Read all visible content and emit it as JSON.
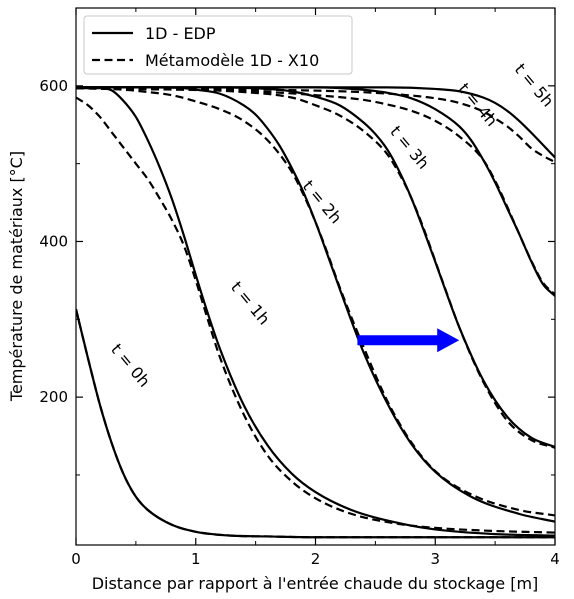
{
  "chart_data": {
    "type": "line",
    "xlabel": "Distance par rapport à l'entrée chaude du stockage [m]",
    "ylabel": "Température de matériaux [°C]",
    "xlim": [
      0,
      4
    ],
    "ylim": [
      10,
      700
    ],
    "x_ticks": [
      0,
      1,
      2,
      3,
      4
    ],
    "x_tick_labels": [
      "0",
      "1",
      "2",
      "3",
      "4"
    ],
    "y_ticks": [
      200,
      400,
      600
    ],
    "y_tick_labels": [
      "200",
      "400",
      "600"
    ],
    "grid": false,
    "legend_position": "top-left",
    "legend": [
      {
        "label": "1D - EDP",
        "style": "solid"
      },
      {
        "label": "Métamodèle 1D - X10",
        "style": "dashed"
      }
    ],
    "annotations": [
      {
        "text": "t = 0h",
        "x": 0.45,
        "y": 240,
        "rotation": 50
      },
      {
        "text": "t = 1h",
        "x": 1.45,
        "y": 320,
        "rotation": 50
      },
      {
        "text": "t = 2h",
        "x": 2.05,
        "y": 450,
        "rotation": 50
      },
      {
        "text": "t = 3h",
        "x": 2.78,
        "y": 520,
        "rotation": 50
      },
      {
        "text": "t = 4h",
        "x": 3.35,
        "y": 575,
        "rotation": 50
      },
      {
        "text": "t = 5h",
        "x": 3.82,
        "y": 600,
        "rotation": 50
      }
    ],
    "arrow": {
      "from": [
        2.35,
        273
      ],
      "to": [
        3.2,
        273
      ],
      "color": "#0000ff"
    },
    "series": [
      {
        "style": "solid",
        "x": [
          0,
          0.1,
          0.2,
          0.3,
          0.4,
          0.5,
          0.6,
          0.8,
          1.0,
          1.3,
          1.6,
          2.0,
          3.0,
          4.0
        ],
        "y": [
          313,
          250,
          190,
          140,
          100,
          72,
          55,
          36,
          27,
          22,
          21,
          20,
          20,
          20
        ]
      },
      {
        "style": "dashed",
        "x": [
          0,
          0.1,
          0.2,
          0.3,
          0.4,
          0.5,
          0.6,
          0.8,
          1.0,
          1.3,
          1.6,
          2.0,
          3.0,
          4.0
        ],
        "y": [
          313,
          250,
          190,
          140,
          100,
          72,
          55,
          36,
          27,
          22,
          21,
          20,
          20,
          20
        ]
      },
      {
        "style": "solid",
        "x": [
          0,
          0.2,
          0.3,
          0.4,
          0.5,
          0.6,
          0.7,
          0.8,
          0.9,
          1.0,
          1.1,
          1.2,
          1.4,
          1.6,
          1.8,
          2.0,
          2.3,
          2.7,
          3.0,
          3.5,
          4.0
        ],
        "y": [
          597,
          597,
          594,
          580,
          560,
          530,
          495,
          455,
          408,
          357,
          308,
          263,
          190,
          138,
          102,
          78,
          55,
          38,
          30,
          24,
          22
        ]
      },
      {
        "style": "dashed",
        "x": [
          0,
          0.1,
          0.2,
          0.3,
          0.4,
          0.5,
          0.6,
          0.7,
          0.8,
          0.9,
          1.0,
          1.1,
          1.2,
          1.4,
          1.6,
          1.8,
          2.0,
          2.3,
          2.7,
          3.0,
          3.5,
          4.0
        ],
        "y": [
          585,
          575,
          560,
          540,
          520,
          500,
          480,
          455,
          428,
          395,
          350,
          300,
          252,
          178,
          125,
          92,
          70,
          50,
          37,
          32,
          28,
          26
        ]
      },
      {
        "style": "solid",
        "x": [
          0,
          0.6,
          0.9,
          1.0,
          1.2,
          1.4,
          1.5,
          1.6,
          1.7,
          1.8,
          1.9,
          2.0,
          2.1,
          2.2,
          2.4,
          2.6,
          2.8,
          3.0,
          3.3,
          3.7,
          4.0
        ],
        "y": [
          598,
          598,
          597,
          595,
          590,
          575,
          563,
          545,
          523,
          495,
          463,
          425,
          383,
          340,
          258,
          192,
          140,
          104,
          72,
          50,
          40
        ]
      },
      {
        "style": "dashed",
        "x": [
          0,
          0.4,
          0.6,
          0.8,
          1.0,
          1.2,
          1.4,
          1.6,
          1.8,
          1.9,
          2.0,
          2.1,
          2.2,
          2.4,
          2.6,
          2.8,
          3.0,
          3.3,
          3.7,
          4.0
        ],
        "y": [
          597,
          595,
          592,
          588,
          580,
          570,
          555,
          530,
          490,
          460,
          425,
          385,
          342,
          265,
          195,
          142,
          105,
          75,
          55,
          48
        ]
      },
      {
        "style": "solid",
        "x": [
          0,
          1.2,
          1.6,
          1.8,
          2.0,
          2.2,
          2.4,
          2.5,
          2.6,
          2.7,
          2.8,
          2.9,
          3.0,
          3.1,
          3.2,
          3.4,
          3.6,
          3.8,
          4.0
        ],
        "y": [
          598,
          598,
          596,
          593,
          586,
          575,
          553,
          538,
          518,
          490,
          456,
          416,
          374,
          331,
          290,
          222,
          175,
          148,
          136
        ]
      },
      {
        "style": "dashed",
        "x": [
          0,
          1.0,
          1.4,
          1.8,
          2.0,
          2.2,
          2.4,
          2.6,
          2.7,
          2.8,
          2.9,
          3.0,
          3.1,
          3.2,
          3.4,
          3.6,
          3.8,
          4.0
        ],
        "y": [
          597,
          595,
          592,
          585,
          575,
          562,
          542,
          512,
          487,
          456,
          418,
          375,
          332,
          290,
          220,
          170,
          145,
          135
        ]
      },
      {
        "style": "solid",
        "x": [
          0,
          2.0,
          2.4,
          2.6,
          2.8,
          3.0,
          3.2,
          3.3,
          3.4,
          3.5,
          3.6,
          3.7,
          3.8,
          3.9,
          4.0
        ],
        "y": [
          598,
          598,
          595,
          591,
          584,
          570,
          548,
          530,
          505,
          476,
          443,
          410,
          375,
          345,
          330
        ]
      },
      {
        "style": "dashed",
        "x": [
          0,
          1.6,
          2.0,
          2.4,
          2.6,
          2.8,
          3.0,
          3.2,
          3.4,
          3.5,
          3.6,
          3.7,
          3.8,
          3.9,
          4.0
        ],
        "y": [
          597,
          592,
          588,
          582,
          576,
          568,
          555,
          535,
          505,
          478,
          445,
          410,
          376,
          347,
          332
        ]
      },
      {
        "style": "solid",
        "x": [
          0,
          2.6,
          3.0,
          3.2,
          3.4,
          3.5,
          3.6,
          3.7,
          3.8,
          3.9,
          4.0
        ],
        "y": [
          598,
          598,
          596,
          593,
          585,
          578,
          568,
          555,
          540,
          524,
          508
        ]
      },
      {
        "style": "dashed",
        "x": [
          0,
          2.2,
          2.6,
          3.0,
          3.2,
          3.4,
          3.5,
          3.6,
          3.7,
          3.8,
          3.9,
          4.0
        ],
        "y": [
          597,
          593,
          590,
          584,
          578,
          567,
          558,
          548,
          535,
          520,
          510,
          502
        ]
      }
    ]
  }
}
